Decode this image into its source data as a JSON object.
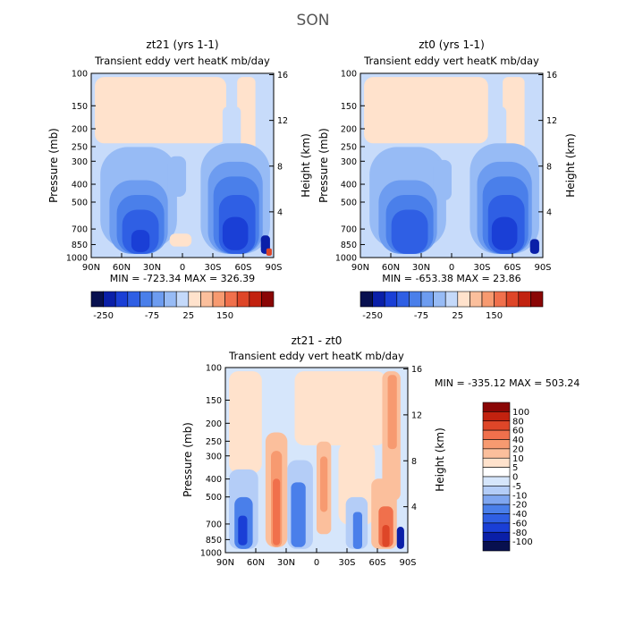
{
  "page_title": "SON",
  "chart_data": [
    {
      "type": "heatmap",
      "title": "zt21  (yrs 1-1)",
      "subtitle": "Transient eddy vert heatK mb/day",
      "xlabel": "",
      "ylabel": "Pressure (mb)",
      "y2label": "Height (km)",
      "xticks": [
        "90N",
        "60N",
        "30N",
        "0",
        "30S",
        "60S",
        "90S"
      ],
      "yticks": [
        "100",
        "150",
        "200",
        "250",
        "300",
        "400",
        "500",
        "700",
        "850",
        "1000"
      ],
      "y2ticks": [
        "16",
        "12",
        "8",
        "4"
      ],
      "stats": "MIN = -723.34   MAX = 326.39",
      "legend_labels": [
        "-250",
        "-75",
        "25",
        "150"
      ],
      "colors": [
        "#08104f",
        "#0a1fa8",
        "#1a3fd6",
        "#2f5fe4",
        "#4a7fea",
        "#6d9cf0",
        "#97bbf5",
        "#c4d9fa",
        "#ffe2cc",
        "#fbbf9c",
        "#f79a70",
        "#f0704c",
        "#de4628",
        "#c2220f",
        "#8a0605"
      ]
    },
    {
      "type": "heatmap",
      "title": "zt0  (yrs 1-1)",
      "subtitle": "Transient eddy vert heatK mb/day",
      "xlabel": "",
      "ylabel": "Pressure (mb)",
      "y2label": "Height (km)",
      "xticks": [
        "90N",
        "60N",
        "30N",
        "0",
        "30S",
        "60S",
        "90S"
      ],
      "yticks": [
        "100",
        "150",
        "200",
        "250",
        "300",
        "400",
        "500",
        "700",
        "850",
        "1000"
      ],
      "y2ticks": [
        "16",
        "12",
        "8",
        "4"
      ],
      "stats": "MIN = -653.38   MAX =  23.86",
      "legend_labels": [
        "-250",
        "-75",
        "25",
        "150"
      ],
      "colors": [
        "#08104f",
        "#0a1fa8",
        "#1a3fd6",
        "#2f5fe4",
        "#4a7fea",
        "#6d9cf0",
        "#97bbf5",
        "#c4d9fa",
        "#ffe2cc",
        "#fbbf9c",
        "#f79a70",
        "#f0704c",
        "#de4628",
        "#c2220f",
        "#8a0605"
      ]
    },
    {
      "type": "heatmap",
      "title": "zt21 - zt0",
      "subtitle": "Transient eddy vert heatK mb/day",
      "xlabel": "",
      "ylabel": "Pressure (mb)",
      "y2label": "Height (km)",
      "xticks": [
        "90N",
        "60N",
        "30N",
        "0",
        "30S",
        "60S",
        "90S"
      ],
      "yticks": [
        "100",
        "150",
        "200",
        "250",
        "300",
        "400",
        "500",
        "700",
        "850",
        "1000"
      ],
      "y2ticks": [
        "16",
        "12",
        "8",
        "4"
      ],
      "stats": "MIN = -335.12   MAX = 503.24",
      "legend_labels": [
        "100",
        "80",
        "60",
        "40",
        "20",
        "10",
        "5",
        "0",
        "-5",
        "-10",
        "-20",
        "-40",
        "-60",
        "-80",
        "-100"
      ],
      "colors": [
        "#8a0605",
        "#c2220f",
        "#de4628",
        "#f0704c",
        "#f79a70",
        "#fbbf9c",
        "#ffe2cc",
        "#ffffff",
        "#d6e6fb",
        "#b4cdf7",
        "#7fa6f0",
        "#4a7fea",
        "#2f5fe4",
        "#1a3fd6",
        "#0a1fa8",
        "#08104f"
      ]
    }
  ]
}
